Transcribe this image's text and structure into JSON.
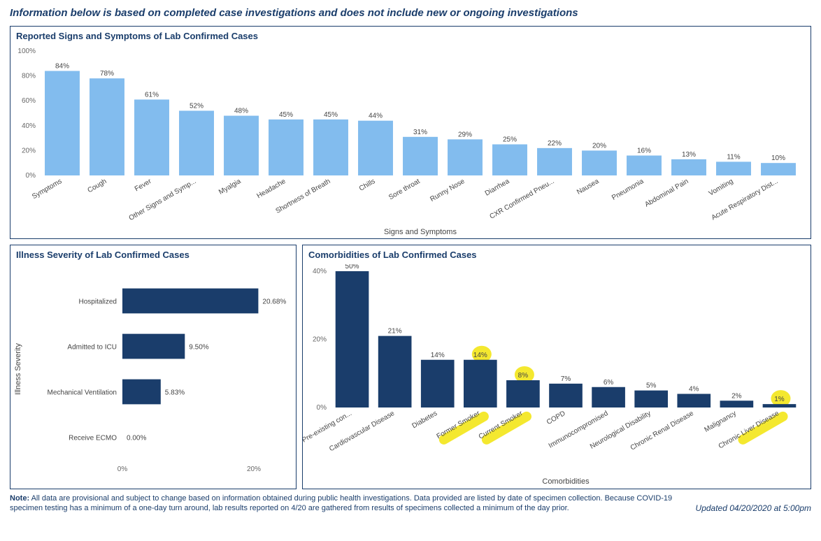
{
  "header": "Information below is based on completed case investigations and does not include new or ongoing investigations",
  "chart1": {
    "title": "Reported Signs and Symptoms of Lab Confirmed Cases",
    "type": "bar",
    "xlabel": "Signs and Symptoms",
    "ylim": [
      0,
      100
    ],
    "ytick_step": 20,
    "ytick_suffix": "%",
    "bar_color": "#82bcee",
    "tick_color": "#666666",
    "label_color": "#444444",
    "background": "#ffffff",
    "label_fontsize": 10,
    "title_fontsize": 13,
    "categories": [
      "Symptoms",
      "Cough",
      "Fever",
      "Other Signs and Symp...",
      "Myalgia",
      "Headache",
      "Shortness of Breath",
      "Chills",
      "Sore throat",
      "Runny Nose",
      "Diarrhea",
      "CXR Confirmed Pneu...",
      "Nausea",
      "Pneumonia",
      "Abdominal Pain",
      "Vomiting",
      "Acute Respiratory Dist..."
    ],
    "values": [
      84,
      78,
      61,
      52,
      48,
      45,
      45,
      44,
      31,
      29,
      25,
      22,
      20,
      16,
      13,
      11,
      10
    ]
  },
  "chart2": {
    "title": "Illness Severity of Lab Confirmed Cases",
    "type": "hbar",
    "ylabel": "Illness Severity",
    "xlim": [
      0,
      20
    ],
    "xtick_step": 20,
    "xtick_suffix": "%",
    "bar_color": "#1a3d6b",
    "tick_color": "#666666",
    "label_color": "#444444",
    "background": "#ffffff",
    "label_fontsize": 10,
    "title_fontsize": 13,
    "categories": [
      "Hospitalized",
      "Admitted to ICU",
      "Mechanical Ventilation",
      "Receive ECMO"
    ],
    "values": [
      20.68,
      9.5,
      5.83,
      0.0
    ],
    "value_labels": [
      "20.68%",
      "9.50%",
      "5.83%",
      "0.00%"
    ]
  },
  "chart3": {
    "title": "Comorbidities of Lab Confirmed Cases",
    "type": "bar",
    "xlabel": "Comorbidities",
    "ylim": [
      0,
      40
    ],
    "ytick_step": 20,
    "ytick_suffix": "%",
    "bar_color": "#1a3d6b",
    "highlight_color": "#f2e40a",
    "tick_color": "#666666",
    "label_color": "#444444",
    "background": "#ffffff",
    "label_fontsize": 10,
    "title_fontsize": 13,
    "categories": [
      "Pre-existing con...",
      "Cardiovascular Disease",
      "Diabetes",
      "Former Smoker",
      "Current Smoker",
      "COPD",
      "Immunocompromised",
      "Neurological Disability",
      "Chronic Renal Disease",
      "Malignancy",
      "Chronic Liver Disease"
    ],
    "values": [
      50,
      21,
      14,
      14,
      8,
      7,
      6,
      5,
      4,
      2,
      1
    ],
    "highlighted": [
      false,
      false,
      false,
      true,
      true,
      false,
      false,
      false,
      false,
      false,
      true
    ]
  },
  "footer": {
    "note_label": "Note:",
    "note_text": "All data are provisional and subject to change based on information obtained during public health investigations. Data provided are listed by date of specimen collection. Because COVID-19 specimen testing has a minimum of a one-day turn around, lab results reported on 4/20 are gathered from results of specimens collected a minimum of the day prior.",
    "updated": "Updated 04/20/2020 at 5:00pm"
  }
}
